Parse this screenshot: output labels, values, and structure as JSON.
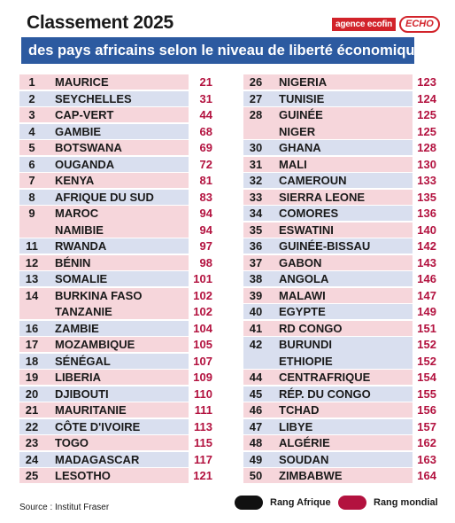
{
  "header": {
    "title": "Classement 2025",
    "subtitle": "des pays africains selon le niveau de liberté économique",
    "brand_primary": "agence ecofin",
    "brand_secondary": "ECHO"
  },
  "colors": {
    "subtitle_band": "#2c5aa0",
    "row_pink": "#f6d6db",
    "row_blue": "#d9dfef",
    "world_rank": "#b3123f",
    "africa_legend": "#111111",
    "world_legend": "#b3123f"
  },
  "left_column": [
    {
      "rank": "1",
      "country": "MAURICE",
      "world": "21",
      "style": "pink"
    },
    {
      "rank": "2",
      "country": "SEYCHELLES",
      "world": "31",
      "style": "blue"
    },
    {
      "rank": "3",
      "country": "CAP-VERT",
      "world": "44",
      "style": "pink"
    },
    {
      "rank": "4",
      "country": "GAMBIE",
      "world": "68",
      "style": "blue"
    },
    {
      "rank": "5",
      "country": "BOTSWANA",
      "world": "69",
      "style": "pink"
    },
    {
      "rank": "6",
      "country": "OUGANDA",
      "world": "72",
      "style": "blue"
    },
    {
      "rank": "7",
      "country": "KENYA",
      "world": "81",
      "style": "pink"
    },
    {
      "rank": "8",
      "country": "AFRIQUE DU SUD",
      "world": "83",
      "style": "blue"
    },
    {
      "rank": "9",
      "country": "MAROC",
      "world": "94",
      "style": "pink"
    },
    {
      "rank": "",
      "country": "NAMIBIE",
      "world": "94",
      "style": "pink"
    },
    {
      "rank": "11",
      "country": "RWANDA",
      "world": "97",
      "style": "blue"
    },
    {
      "rank": "12",
      "country": "BÉNIN",
      "world": "98",
      "style": "pink"
    },
    {
      "rank": "13",
      "country": "SOMALIE",
      "world": "101",
      "style": "blue"
    },
    {
      "rank": "14",
      "country": "BURKINA FASO",
      "world": "102",
      "style": "pink"
    },
    {
      "rank": "",
      "country": "TANZANIE",
      "world": "102",
      "style": "pink"
    },
    {
      "rank": "16",
      "country": "ZAMBIE",
      "world": "104",
      "style": "blue"
    },
    {
      "rank": "17",
      "country": "MOZAMBIQUE",
      "world": "105",
      "style": "pink"
    },
    {
      "rank": "18",
      "country": "SÉNÉGAL",
      "world": "107",
      "style": "blue"
    },
    {
      "rank": "19",
      "country": "LIBERIA",
      "world": "109",
      "style": "pink"
    },
    {
      "rank": "20",
      "country": "DJIBOUTI",
      "world": "110",
      "style": "blue"
    },
    {
      "rank": "21",
      "country": "MAURITANIE",
      "world": "111",
      "style": "pink"
    },
    {
      "rank": "22",
      "country": "CÔTE D'IVOIRE",
      "world": "113",
      "style": "blue"
    },
    {
      "rank": "23",
      "country": "TOGO",
      "world": "115",
      "style": "pink"
    },
    {
      "rank": "24",
      "country": "MADAGASCAR",
      "world": "117",
      "style": "blue"
    },
    {
      "rank": "25",
      "country": "LESOTHO",
      "world": "121",
      "style": "pink"
    }
  ],
  "right_column": [
    {
      "rank": "26",
      "country": "NIGERIA",
      "world": "123",
      "style": "pink"
    },
    {
      "rank": "27",
      "country": "TUNISIE",
      "world": "124",
      "style": "blue"
    },
    {
      "rank": "28",
      "country": "GUINÉE",
      "world": "125",
      "style": "pink"
    },
    {
      "rank": "",
      "country": "NIGER",
      "world": "125",
      "style": "pink"
    },
    {
      "rank": "30",
      "country": "GHANA",
      "world": "128",
      "style": "blue"
    },
    {
      "rank": "31",
      "country": "MALI",
      "world": "130",
      "style": "pink"
    },
    {
      "rank": "32",
      "country": "CAMEROUN",
      "world": "133",
      "style": "blue"
    },
    {
      "rank": "33",
      "country": "SIERRA LEONE",
      "world": "135",
      "style": "pink"
    },
    {
      "rank": "34",
      "country": "COMORES",
      "world": "136",
      "style": "blue"
    },
    {
      "rank": "35",
      "country": "ESWATINI",
      "world": "140",
      "style": "pink"
    },
    {
      "rank": "36",
      "country": "GUINÉE-BISSAU",
      "world": "142",
      "style": "blue"
    },
    {
      "rank": "37",
      "country": "GABON",
      "world": "143",
      "style": "pink"
    },
    {
      "rank": "38",
      "country": "ANGOLA",
      "world": "146",
      "style": "blue"
    },
    {
      "rank": "39",
      "country": "MALAWI",
      "world": "147",
      "style": "pink"
    },
    {
      "rank": "40",
      "country": "EGYPTE",
      "world": "149",
      "style": "blue"
    },
    {
      "rank": "41",
      "country": "RD CONGO",
      "world": "151",
      "style": "pink"
    },
    {
      "rank": "42",
      "country": "BURUNDI",
      "world": "152",
      "style": "blue"
    },
    {
      "rank": "",
      "country": "ETHIOPIE",
      "world": "152",
      "style": "blue"
    },
    {
      "rank": "44",
      "country": "CENTRAFRIQUE",
      "world": "154",
      "style": "pink"
    },
    {
      "rank": "45",
      "country": "RÉP. DU CONGO",
      "world": "155",
      "style": "blue"
    },
    {
      "rank": "46",
      "country": "TCHAD",
      "world": "156",
      "style": "pink"
    },
    {
      "rank": "47",
      "country": "LIBYE",
      "world": "157",
      "style": "blue"
    },
    {
      "rank": "48",
      "country": "ALGÉRIE",
      "world": "162",
      "style": "pink"
    },
    {
      "rank": "49",
      "country": "SOUDAN",
      "world": "163",
      "style": "blue"
    },
    {
      "rank": "50",
      "country": "ZIMBABWE",
      "world": "164",
      "style": "pink"
    }
  ],
  "footer": {
    "source": "Source : Institut Fraser",
    "legend_africa": "Rang Afrique",
    "legend_world": "Rang mondial"
  }
}
